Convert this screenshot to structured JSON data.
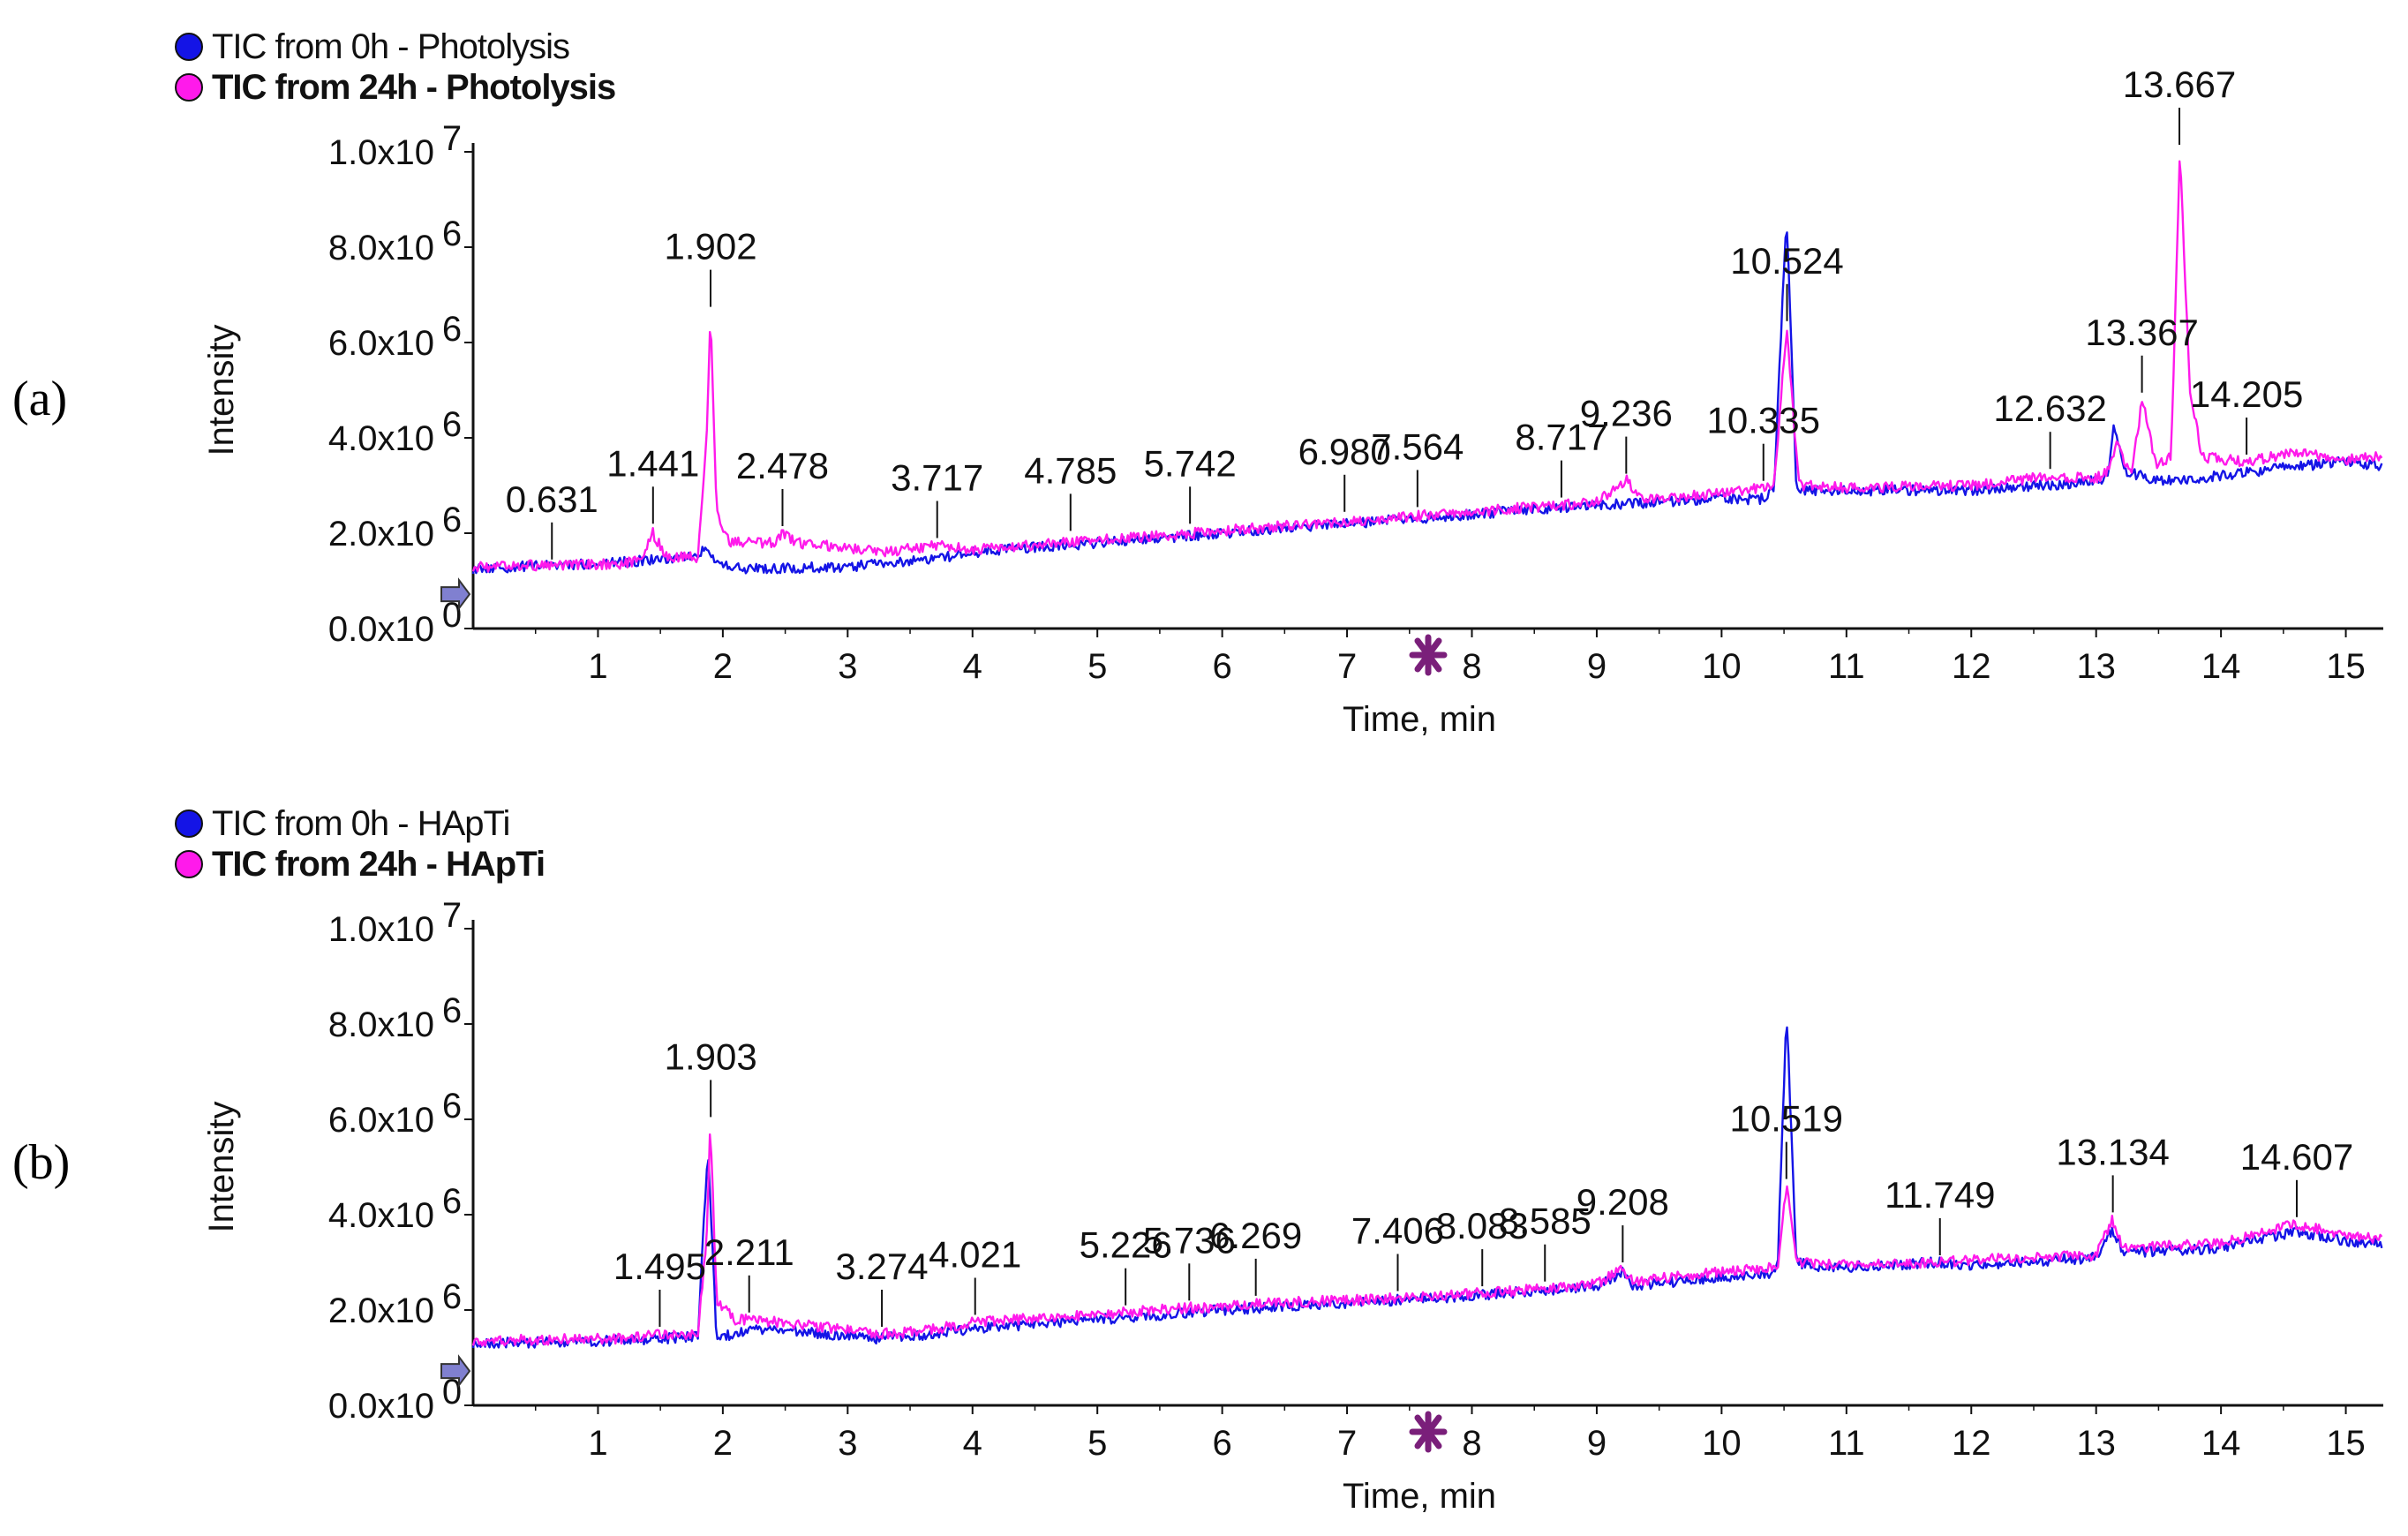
{
  "chart_data": [
    {
      "type": "line",
      "panel_label": "(a)",
      "legend_position": "top-left",
      "series": [
        {
          "name": "TIC from 0h - Photolysis",
          "color": "#1414e6",
          "bold": false,
          "points": [
            [
              0,
              1.25
            ],
            [
              0.5,
              1.32
            ],
            [
              1,
              1.35
            ],
            [
              1.5,
              1.45
            ],
            [
              1.8,
              1.5
            ],
            [
              1.88,
              1.75
            ],
            [
              1.95,
              1.35
            ],
            [
              2.2,
              1.25
            ],
            [
              3,
              1.3
            ],
            [
              3.7,
              1.45
            ],
            [
              4,
              1.6
            ],
            [
              5,
              1.8
            ],
            [
              6,
              2.0
            ],
            [
              7,
              2.2
            ],
            [
              8,
              2.4
            ],
            [
              9,
              2.6
            ],
            [
              9.5,
              2.65
            ],
            [
              10,
              2.75
            ],
            [
              10.3,
              2.7
            ],
            [
              10.42,
              2.9
            ],
            [
              10.52,
              8.7
            ],
            [
              10.6,
              2.9
            ],
            [
              10.75,
              2.9
            ],
            [
              11,
              2.9
            ],
            [
              12,
              2.9
            ],
            [
              12.6,
              3.0
            ],
            [
              13,
              3.1
            ],
            [
              13.1,
              3.2
            ],
            [
              13.14,
              4.35
            ],
            [
              13.22,
              3.3
            ],
            [
              13.5,
              3.1
            ],
            [
              14,
              3.2
            ],
            [
              14.6,
              3.4
            ],
            [
              15,
              3.5
            ],
            [
              15.3,
              3.4
            ]
          ]
        },
        {
          "name": "TIC from 24h - Photolysis",
          "color": "#ff1aeb",
          "bold": true,
          "points": [
            [
              0,
              1.3
            ],
            [
              0.6,
              1.33
            ],
            [
              1.2,
              1.35
            ],
            [
              1.35,
              1.45
            ],
            [
              1.44,
              2.0
            ],
            [
              1.55,
              1.5
            ],
            [
              1.8,
              1.5
            ],
            [
              1.87,
              4.0
            ],
            [
              1.9,
              6.6
            ],
            [
              1.95,
              2.5
            ],
            [
              2.05,
              1.8
            ],
            [
              2.4,
              1.8
            ],
            [
              2.48,
              2.0
            ],
            [
              2.6,
              1.8
            ],
            [
              3.3,
              1.6
            ],
            [
              3.72,
              1.75
            ],
            [
              4,
              1.65
            ],
            [
              5,
              1.85
            ],
            [
              6,
              2.05
            ],
            [
              7,
              2.25
            ],
            [
              8,
              2.45
            ],
            [
              9,
              2.65
            ],
            [
              9.24,
              3.1
            ],
            [
              9.35,
              2.7
            ],
            [
              10,
              2.85
            ],
            [
              10.3,
              2.95
            ],
            [
              10.42,
              3.0
            ],
            [
              10.52,
              6.3
            ],
            [
              10.62,
              3.0
            ],
            [
              11,
              2.95
            ],
            [
              12,
              3.0
            ],
            [
              12.63,
              3.2
            ],
            [
              13,
              3.15
            ],
            [
              13.1,
              3.3
            ],
            [
              13.16,
              3.9
            ],
            [
              13.28,
              3.2
            ],
            [
              13.37,
              4.8
            ],
            [
              13.48,
              3.4
            ],
            [
              13.6,
              3.6
            ],
            [
              13.67,
              10.0
            ],
            [
              13.75,
              5.0
            ],
            [
              13.85,
              3.6
            ],
            [
              14.2,
              3.5
            ],
            [
              14.6,
              3.7
            ],
            [
              15,
              3.55
            ],
            [
              15.3,
              3.6
            ]
          ]
        }
      ],
      "peak_labels": [
        {
          "text": "0.631",
          "x": 0.631,
          "y": 1.3
        },
        {
          "text": "1.441",
          "x": 1.441,
          "y": 2.05
        },
        {
          "text": "1.902",
          "x": 1.902,
          "y": 6.6
        },
        {
          "text": "2.478",
          "x": 2.478,
          "y": 2.0
        },
        {
          "text": "3.717",
          "x": 3.717,
          "y": 1.75
        },
        {
          "text": "4.785",
          "x": 4.785,
          "y": 1.9
        },
        {
          "text": "5.742",
          "x": 5.742,
          "y": 2.05
        },
        {
          "text": "6.980",
          "x": 6.98,
          "y": 2.3
        },
        {
          "text": "7.564",
          "x": 7.564,
          "y": 2.4
        },
        {
          "text": "8.717",
          "x": 8.717,
          "y": 2.6
        },
        {
          "text": "9.236",
          "x": 9.236,
          "y": 3.1
        },
        {
          "text": "10.335",
          "x": 10.335,
          "y": 2.95
        },
        {
          "text": "10.524",
          "x": 10.524,
          "y": 6.3
        },
        {
          "text": "12.632",
          "x": 12.632,
          "y": 3.2
        },
        {
          "text": "13.367",
          "x": 13.367,
          "y": 4.8
        },
        {
          "text": "13.667",
          "x": 13.667,
          "y": 10.0
        },
        {
          "text": "14.205",
          "x": 14.205,
          "y": 3.5
        }
      ],
      "x_ticks": [
        "1",
        "2",
        "3",
        "4",
        "5",
        "6",
        "7",
        "8",
        "9",
        "10",
        "11",
        "12",
        "13",
        "14",
        "15"
      ],
      "y_ticks": [
        {
          "base": "0.0x10",
          "exp": "0",
          "value": 0
        },
        {
          "base": "2.0x10",
          "exp": "6",
          "value": 2
        },
        {
          "base": "4.0x10",
          "exp": "6",
          "value": 4
        },
        {
          "base": "6.0x10",
          "exp": "6",
          "value": 6
        },
        {
          "base": "8.0x10",
          "exp": "6",
          "value": 8
        },
        {
          "base": "1.0x10",
          "exp": "7",
          "value": 10
        }
      ],
      "xlabel": "Time, min",
      "ylabel": "Intensity",
      "xlim": [
        0,
        15.3
      ],
      "ylim": [
        0,
        10
      ],
      "marker_time": 7.65,
      "grid": false
    },
    {
      "type": "line",
      "panel_label": "(b)",
      "legend_position": "top-left",
      "series": [
        {
          "name": "TIC from 0h - HApTi",
          "color": "#1414e6",
          "bold": false,
          "points": [
            [
              0,
              1.3
            ],
            [
              0.5,
              1.32
            ],
            [
              1,
              1.35
            ],
            [
              1.5,
              1.4
            ],
            [
              1.8,
              1.45
            ],
            [
              1.88,
              5.4
            ],
            [
              1.95,
              1.4
            ],
            [
              2.2,
              1.6
            ],
            [
              2.6,
              1.55
            ],
            [
              3.2,
              1.4
            ],
            [
              3.5,
              1.45
            ],
            [
              4,
              1.6
            ],
            [
              5,
              1.8
            ],
            [
              6,
              2.0
            ],
            [
              7,
              2.15
            ],
            [
              8,
              2.3
            ],
            [
              9,
              2.5
            ],
            [
              9.21,
              2.8
            ],
            [
              9.3,
              2.5
            ],
            [
              10,
              2.7
            ],
            [
              10.4,
              2.75
            ],
            [
              10.45,
              3.0
            ],
            [
              10.52,
              8.3
            ],
            [
              10.6,
              3.0
            ],
            [
              10.75,
              2.9
            ],
            [
              11,
              2.9
            ],
            [
              11.75,
              3.0
            ],
            [
              12,
              2.95
            ],
            [
              13,
              3.1
            ],
            [
              13.13,
              3.7
            ],
            [
              13.22,
              3.2
            ],
            [
              14,
              3.3
            ],
            [
              14.6,
              3.65
            ],
            [
              15,
              3.45
            ],
            [
              15.3,
              3.4
            ]
          ]
        },
        {
          "name": "TIC from 24h - HApTi",
          "color": "#ff1aeb",
          "bold": true,
          "points": [
            [
              0,
              1.35
            ],
            [
              0.6,
              1.38
            ],
            [
              1.2,
              1.4
            ],
            [
              1.5,
              1.5
            ],
            [
              1.8,
              1.5
            ],
            [
              1.87,
              3.5
            ],
            [
              1.9,
              5.9
            ],
            [
              1.95,
              2.2
            ],
            [
              2.1,
              1.8
            ],
            [
              2.21,
              1.8
            ],
            [
              2.6,
              1.7
            ],
            [
              3.27,
              1.5
            ],
            [
              3.6,
              1.55
            ],
            [
              4.02,
              1.75
            ],
            [
              5,
              1.9
            ],
            [
              5.23,
              1.95
            ],
            [
              5.74,
              2.05
            ],
            [
              6,
              2.05
            ],
            [
              6.27,
              2.15
            ],
            [
              7,
              2.2
            ],
            [
              7.41,
              2.25
            ],
            [
              8,
              2.35
            ],
            [
              8.08,
              2.35
            ],
            [
              8.59,
              2.45
            ],
            [
              9,
              2.55
            ],
            [
              9.21,
              2.85
            ],
            [
              9.3,
              2.6
            ],
            [
              10,
              2.8
            ],
            [
              10.45,
              2.9
            ],
            [
              10.52,
              4.6
            ],
            [
              10.6,
              3.0
            ],
            [
              11,
              2.95
            ],
            [
              11.75,
              3.0
            ],
            [
              12,
              3.05
            ],
            [
              13,
              3.15
            ],
            [
              13.13,
              3.9
            ],
            [
              13.22,
              3.3
            ],
            [
              14,
              3.4
            ],
            [
              14.6,
              3.8
            ],
            [
              15,
              3.55
            ],
            [
              15.3,
              3.5
            ]
          ]
        }
      ],
      "peak_labels": [
        {
          "text": "1.495",
          "x": 1.495,
          "y": 1.5
        },
        {
          "text": "1.903",
          "x": 1.903,
          "y": 5.9
        },
        {
          "text": "2.211",
          "x": 2.211,
          "y": 1.8
        },
        {
          "text": "3.274",
          "x": 3.274,
          "y": 1.5
        },
        {
          "text": "4.021",
          "x": 4.021,
          "y": 1.75
        },
        {
          "text": "5.226",
          "x": 5.226,
          "y": 1.95
        },
        {
          "text": "5.736",
          "x": 5.736,
          "y": 2.05
        },
        {
          "text": "6.269",
          "x": 6.269,
          "y": 2.15
        },
        {
          "text": "7.406",
          "x": 7.406,
          "y": 2.25
        },
        {
          "text": "8.083",
          "x": 8.083,
          "y": 2.35
        },
        {
          "text": "8.585",
          "x": 8.585,
          "y": 2.45
        },
        {
          "text": "9.208",
          "x": 9.208,
          "y": 2.85
        },
        {
          "text": "10.519",
          "x": 10.519,
          "y": 4.6
        },
        {
          "text": "11.749",
          "x": 11.749,
          "y": 3.0
        },
        {
          "text": "13.134",
          "x": 13.134,
          "y": 3.9
        },
        {
          "text": "14.607",
          "x": 14.607,
          "y": 3.8
        }
      ],
      "x_ticks": [
        "1",
        "2",
        "3",
        "4",
        "5",
        "6",
        "7",
        "8",
        "9",
        "10",
        "11",
        "12",
        "13",
        "14",
        "15"
      ],
      "y_ticks": [
        {
          "base": "0.0x10",
          "exp": "0",
          "value": 0
        },
        {
          "base": "2.0x10",
          "exp": "6",
          "value": 2
        },
        {
          "base": "4.0x10",
          "exp": "6",
          "value": 4
        },
        {
          "base": "6.0x10",
          "exp": "6",
          "value": 6
        },
        {
          "base": "8.0x10",
          "exp": "6",
          "value": 8
        },
        {
          "base": "1.0x10",
          "exp": "7",
          "value": 10
        }
      ],
      "xlabel": "Time, min",
      "ylabel": "Intensity",
      "xlim": [
        0,
        15.3
      ],
      "ylim": [
        0,
        10
      ],
      "marker_time": 7.65,
      "grid": false
    }
  ]
}
